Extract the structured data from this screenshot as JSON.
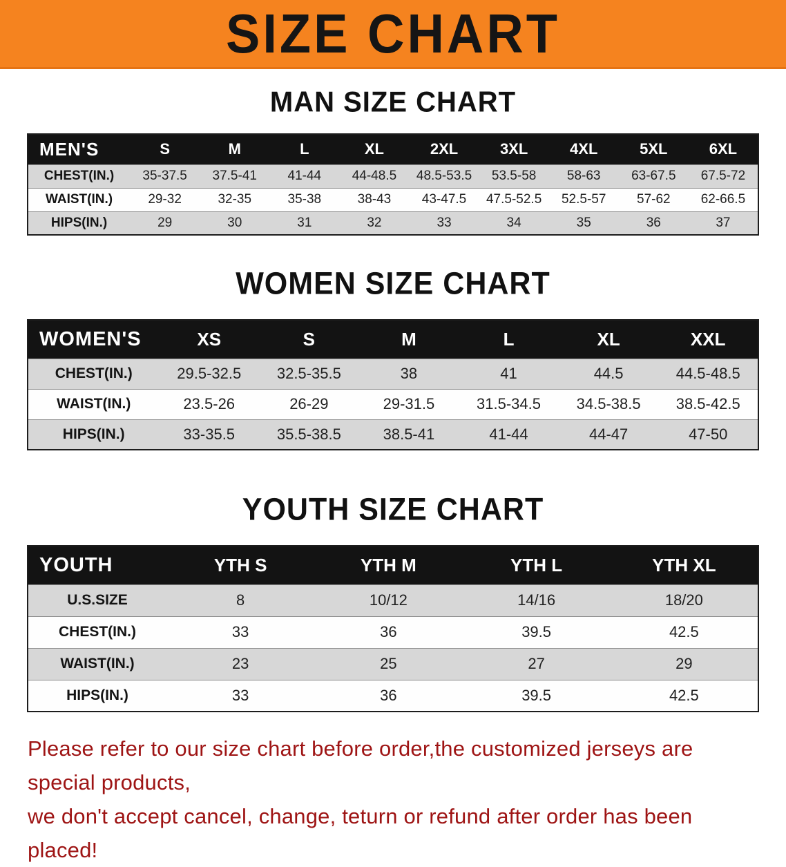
{
  "banner": {
    "title": "SIZE CHART",
    "bg_color": "#f5831f",
    "text_color": "#151515"
  },
  "sections": [
    {
      "heading": "MAN SIZE CHART",
      "table": {
        "corner_label": "MEN'S",
        "columns": [
          "S",
          "M",
          "L",
          "XL",
          "2XL",
          "3XL",
          "4XL",
          "5XL",
          "6XL"
        ],
        "rows": [
          {
            "label": "CHEST(IN.)",
            "values": [
              "35-37.5",
              "37.5-41",
              "41-44",
              "44-48.5",
              "48.5-53.5",
              "53.5-58",
              "58-63",
              "63-67.5",
              "67.5-72"
            ]
          },
          {
            "label": "WAIST(IN.)",
            "values": [
              "29-32",
              "32-35",
              "35-38",
              "38-43",
              "43-47.5",
              "47.5-52.5",
              "52.5-57",
              "57-62",
              "62-66.5"
            ]
          },
          {
            "label": "HIPS(IN.)",
            "values": [
              "29",
              "30",
              "31",
              "32",
              "33",
              "34",
              "35",
              "36",
              "37"
            ]
          }
        ]
      }
    },
    {
      "heading": "WOMEN SIZE CHART",
      "table": {
        "corner_label": "WOMEN'S",
        "columns": [
          "XS",
          "S",
          "M",
          "L",
          "XL",
          "XXL"
        ],
        "rows": [
          {
            "label": "CHEST(IN.)",
            "values": [
              "29.5-32.5",
              "32.5-35.5",
              "38",
              "41",
              "44.5",
              "44.5-48.5"
            ]
          },
          {
            "label": "WAIST(IN.)",
            "values": [
              "23.5-26",
              "26-29",
              "29-31.5",
              "31.5-34.5",
              "34.5-38.5",
              "38.5-42.5"
            ]
          },
          {
            "label": "HIPS(IN.)",
            "values": [
              "33-35.5",
              "35.5-38.5",
              "38.5-41",
              "41-44",
              "44-47",
              "47-50"
            ]
          }
        ]
      }
    },
    {
      "heading": "YOUTH SIZE CHART",
      "table": {
        "corner_label": "YOUTH",
        "columns": [
          "YTH S",
          "YTH M",
          "YTH L",
          "YTH XL"
        ],
        "rows": [
          {
            "label": "U.S.SIZE",
            "values": [
              "8",
              "10/12",
              "14/16",
              "18/20"
            ]
          },
          {
            "label": "CHEST(IN.)",
            "values": [
              "33",
              "36",
              "39.5",
              "42.5"
            ]
          },
          {
            "label": "WAIST(IN.)",
            "values": [
              "23",
              "25",
              "27",
              "29"
            ]
          },
          {
            "label": "HIPS(IN.)",
            "values": [
              "33",
              "36",
              "39.5",
              "42.5"
            ]
          }
        ]
      }
    }
  ],
  "disclaimer": {
    "line1": "Please refer to our size chart before order,the customized jerseys are special products,",
    "line2": "we don't accept cancel, change, teturn or refund after order has been placed!",
    "color": "#9e1414"
  }
}
